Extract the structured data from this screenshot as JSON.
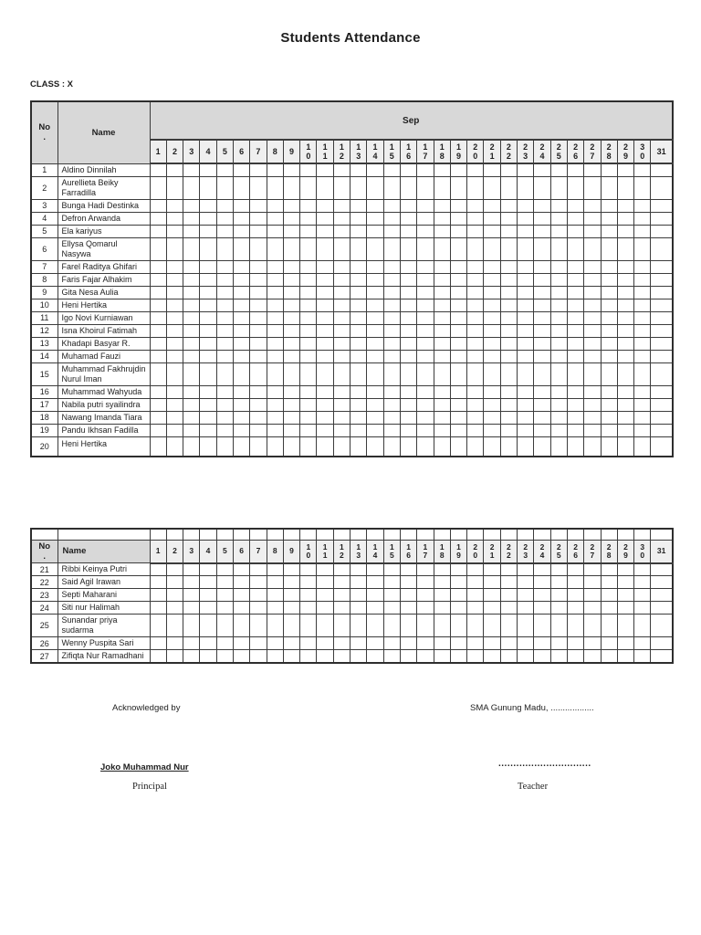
{
  "document": {
    "title": "Students Attendance",
    "class_label": "CLASS : X",
    "table": {
      "no_header_lines": [
        "No",
        "."
      ],
      "name_header": "Name",
      "month_header": "Sep",
      "days": [
        "1",
        "2",
        "3",
        "4",
        "5",
        "6",
        "7",
        "8",
        "9",
        "10",
        "11",
        "12",
        "13",
        "14",
        "15",
        "16",
        "17",
        "18",
        "19",
        "20",
        "21",
        "22",
        "23",
        "24",
        "25",
        "26",
        "27",
        "28",
        "29",
        "30",
        "31"
      ],
      "students_page1": [
        {
          "no": "1",
          "name": "Aldino Dinnilah"
        },
        {
          "no": "2",
          "name": "Aurellieta Beiky Farradilla"
        },
        {
          "no": "3",
          "name": "Bunga Hadi Destinka"
        },
        {
          "no": "4",
          "name": "Defron Arwanda"
        },
        {
          "no": "5",
          "name": "Ela kariyus"
        },
        {
          "no": "6",
          "name": "Ellysa Qomarul Nasywa"
        },
        {
          "no": "7",
          "name": "Farel Raditya Ghifari"
        },
        {
          "no": "8",
          "name": "Faris Fajar Alhakim"
        },
        {
          "no": "9",
          "name": "Gita Nesa Aulia"
        },
        {
          "no": "10",
          "name": "Heni Hertika"
        },
        {
          "no": "11",
          "name": "Igo Novi Kurniawan"
        },
        {
          "no": "12",
          "name": "Isna Khoirul Fatimah"
        },
        {
          "no": "13",
          "name": "Khadapi Basyar R."
        },
        {
          "no": "14",
          "name": "Muhamad Fauzi"
        },
        {
          "no": "15",
          "name": "Muhammad Fakhrujdin Nurul Iman"
        },
        {
          "no": "16",
          "name": "Muhammad Wahyuda"
        },
        {
          "no": "17",
          "name": "Nabila putri syailindra"
        },
        {
          "no": "18",
          "name": "Nawang Imanda Tiara"
        },
        {
          "no": "19",
          "name": "Pandu Ikhsan Fadilla"
        },
        {
          "no": "20",
          "name": "Heni Hertika",
          "tall": true
        }
      ],
      "students_page2": [
        {
          "no": "21",
          "name": "Ribbi Keinya Putri"
        },
        {
          "no": "22",
          "name": "Said Agil Irawan"
        },
        {
          "no": "23",
          "name": "Septi Maharani"
        },
        {
          "no": "24",
          "name": "Siti nur Halimah"
        },
        {
          "no": "25",
          "name": "Sunandar priya sudarma"
        },
        {
          "no": "26",
          "name": "Wenny Puspita Sari"
        },
        {
          "no": "27",
          "name": "Zifiqta Nur Ramadhani"
        }
      ]
    },
    "footer": {
      "acknowledged_by": "Acknowledged by",
      "place_date": "SMA Gunung Madu, ..................",
      "principal_name": "Joko Muhammad Nur",
      "principal_title": "Principal",
      "teacher_signature_dots": "...............................",
      "teacher_title": "Teacher"
    },
    "colors": {
      "header_bg": "#d8d8d8",
      "day_header_bg": "#efefef",
      "border": "#3c3c3c"
    }
  }
}
